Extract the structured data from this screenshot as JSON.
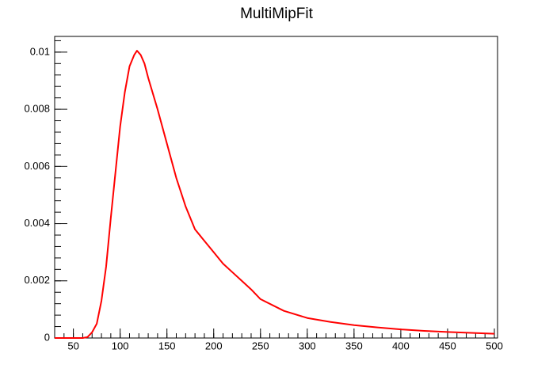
{
  "chart_data": {
    "type": "line",
    "title": "MultiMipFit",
    "x": [
      30,
      60,
      65,
      70,
      75,
      80,
      85,
      90,
      95,
      100,
      105,
      110,
      115,
      118,
      122,
      126,
      130,
      140,
      150,
      160,
      170,
      180,
      190,
      200,
      210,
      220,
      230,
      240,
      250,
      275,
      300,
      325,
      350,
      375,
      400,
      425,
      450,
      475,
      500
    ],
    "series": [
      {
        "name": "MultiMipFit",
        "color": "#ff0000",
        "values": [
          0,
          0,
          3e-05,
          0.0002,
          0.0005,
          0.0013,
          0.0025,
          0.0042,
          0.0058,
          0.0074,
          0.0086,
          0.0095,
          0.0099,
          0.01005,
          0.0099,
          0.0096,
          0.0091,
          0.008,
          0.0068,
          0.0056,
          0.0046,
          0.0038,
          0.0034,
          0.003,
          0.0026,
          0.0023,
          0.002,
          0.0017,
          0.00136,
          0.00095,
          0.0007,
          0.00056,
          0.00045,
          0.00037,
          0.0003,
          0.00025,
          0.00021,
          0.00018,
          0.00015
        ]
      }
    ],
    "xlim": [
      30,
      503.4
    ],
    "ylim": [
      0,
      0.01055
    ],
    "xticks": [
      50,
      100,
      150,
      200,
      250,
      300,
      350,
      400,
      450,
      500
    ],
    "yticks": [
      0,
      0.002,
      0.004,
      0.006,
      0.008,
      0.01
    ],
    "grid": false
  }
}
